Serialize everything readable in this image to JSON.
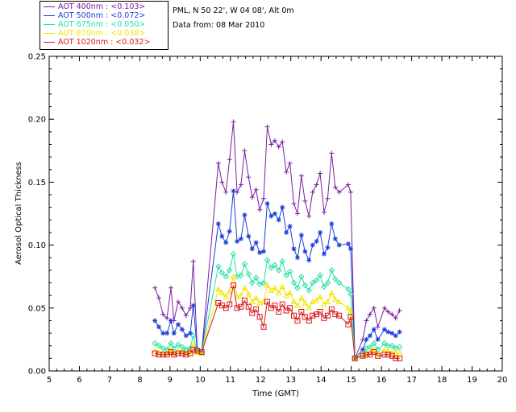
{
  "legend": [
    {
      "label": "AOT  400nm : <0.103>",
      "color": "#7a1ea0"
    },
    {
      "label": "AOT  500nm : <0.072>",
      "color": "#1a3fd8"
    },
    {
      "label": "AOT  675nm : <0.050>",
      "color": "#22e0a8"
    },
    {
      "label": "AOT  870nm : <0.038>",
      "color": "#f2e600"
    },
    {
      "label": "AOT 1020nm : <0.032>",
      "color": "#d81818"
    }
  ],
  "info": {
    "location": "PML, N 50 22', W 04 08', Alt 0m",
    "date": "Data from: 08 Mar 2010"
  },
  "chart_data": {
    "type": "line",
    "xlabel": "Time (GMT)",
    "ylabel": "Aerosol Optical Thickness",
    "xlim": [
      5,
      20
    ],
    "ylim": [
      0,
      0.25
    ],
    "xticks": [
      "5",
      "6",
      "7",
      "8",
      "9",
      "10",
      "11",
      "12",
      "13",
      "14",
      "15",
      "16",
      "17",
      "18",
      "19",
      "20"
    ],
    "yticks": [
      "0.00",
      "0.05",
      "0.10",
      "0.15",
      "0.20",
      "0.25"
    ],
    "grid": false,
    "legend_position": "top-left, outside plot",
    "series": [
      {
        "name": "AOT  400nm",
        "color": "#7a1ea0",
        "marker": "plus",
        "x": [
          8.5,
          8.63,
          8.77,
          8.9,
          9.03,
          9.13,
          9.27,
          9.4,
          9.53,
          9.67,
          9.77,
          9.9,
          10.05,
          10.6,
          10.72,
          10.85,
          10.97,
          11.1,
          11.22,
          11.35,
          11.47,
          11.6,
          11.72,
          11.85,
          11.97,
          12.1,
          12.22,
          12.35,
          12.47,
          12.6,
          12.72,
          12.85,
          12.97,
          13.1,
          13.22,
          13.35,
          13.47,
          13.6,
          13.72,
          13.85,
          13.97,
          14.1,
          14.22,
          14.35,
          14.47,
          14.6,
          14.9,
          14.98,
          15.12,
          15.38,
          15.5,
          15.62,
          15.75,
          15.88,
          16.1,
          16.22,
          16.35,
          16.47,
          16.6
        ],
        "y": [
          0.066,
          0.058,
          0.045,
          0.042,
          0.066,
          0.04,
          0.055,
          0.05,
          0.044,
          0.05,
          0.087,
          0.018,
          0.015,
          0.165,
          0.15,
          0.142,
          0.168,
          0.198,
          0.142,
          0.148,
          0.175,
          0.154,
          0.138,
          0.144,
          0.128,
          0.137,
          0.194,
          0.18,
          0.183,
          0.178,
          0.182,
          0.158,
          0.165,
          0.133,
          0.125,
          0.155,
          0.135,
          0.123,
          0.142,
          0.148,
          0.157,
          0.126,
          0.137,
          0.173,
          0.146,
          0.142,
          0.148,
          0.142,
          0.01,
          0.025,
          0.04,
          0.045,
          0.05,
          0.035,
          0.05,
          0.047,
          0.045,
          0.042,
          0.048
        ]
      },
      {
        "name": "AOT  500nm",
        "color": "#1a3fd8",
        "marker": "asterisk",
        "x": [
          8.5,
          8.63,
          8.77,
          8.9,
          9.03,
          9.13,
          9.27,
          9.4,
          9.53,
          9.67,
          9.77,
          9.9,
          10.05,
          10.6,
          10.72,
          10.85,
          10.97,
          11.1,
          11.22,
          11.35,
          11.47,
          11.6,
          11.72,
          11.85,
          11.97,
          12.1,
          12.22,
          12.35,
          12.47,
          12.6,
          12.72,
          12.85,
          12.97,
          13.1,
          13.22,
          13.35,
          13.47,
          13.6,
          13.72,
          13.85,
          13.97,
          14.1,
          14.22,
          14.35,
          14.47,
          14.6,
          14.9,
          14.98,
          15.12,
          15.38,
          15.5,
          15.62,
          15.75,
          15.88,
          16.1,
          16.22,
          16.35,
          16.47,
          16.6
        ],
        "y": [
          0.04,
          0.035,
          0.03,
          0.03,
          0.04,
          0.03,
          0.037,
          0.033,
          0.028,
          0.03,
          0.052,
          0.017,
          0.015,
          0.117,
          0.107,
          0.102,
          0.111,
          0.143,
          0.103,
          0.105,
          0.124,
          0.107,
          0.097,
          0.102,
          0.094,
          0.095,
          0.133,
          0.123,
          0.125,
          0.12,
          0.13,
          0.11,
          0.115,
          0.097,
          0.09,
          0.108,
          0.095,
          0.088,
          0.1,
          0.103,
          0.11,
          0.093,
          0.098,
          0.117,
          0.105,
          0.1,
          0.101,
          0.097,
          0.01,
          0.017,
          0.025,
          0.028,
          0.033,
          0.025,
          0.033,
          0.031,
          0.03,
          0.028,
          0.031
        ]
      },
      {
        "name": "AOT  675nm",
        "color": "#22e0a8",
        "marker": "diamond",
        "x": [
          8.5,
          8.63,
          8.77,
          8.9,
          9.03,
          9.13,
          9.27,
          9.4,
          9.53,
          9.67,
          9.77,
          9.9,
          10.05,
          10.6,
          10.72,
          10.85,
          10.97,
          11.1,
          11.22,
          11.35,
          11.47,
          11.6,
          11.72,
          11.85,
          11.97,
          12.1,
          12.22,
          12.35,
          12.47,
          12.6,
          12.72,
          12.85,
          12.97,
          13.1,
          13.22,
          13.35,
          13.47,
          13.6,
          13.72,
          13.85,
          13.97,
          14.1,
          14.22,
          14.35,
          14.47,
          14.6,
          14.9,
          14.98,
          15.12,
          15.38,
          15.5,
          15.62,
          15.75,
          15.88,
          16.1,
          16.22,
          16.35,
          16.47,
          16.6
        ],
        "y": [
          0.022,
          0.02,
          0.018,
          0.017,
          0.022,
          0.018,
          0.021,
          0.019,
          0.017,
          0.018,
          0.028,
          0.016,
          0.015,
          0.083,
          0.078,
          0.075,
          0.08,
          0.093,
          0.075,
          0.076,
          0.085,
          0.077,
          0.07,
          0.074,
          0.069,
          0.07,
          0.088,
          0.082,
          0.084,
          0.08,
          0.087,
          0.076,
          0.079,
          0.07,
          0.066,
          0.075,
          0.068,
          0.064,
          0.07,
          0.072,
          0.076,
          0.067,
          0.07,
          0.08,
          0.073,
          0.07,
          0.065,
          0.061,
          0.01,
          0.013,
          0.018,
          0.019,
          0.022,
          0.017,
          0.022,
          0.02,
          0.02,
          0.018,
          0.019
        ]
      },
      {
        "name": "AOT  870nm",
        "color": "#f2e600",
        "marker": "triangle",
        "x": [
          8.5,
          8.63,
          8.77,
          8.9,
          9.03,
          9.13,
          9.27,
          9.4,
          9.53,
          9.67,
          9.77,
          9.9,
          10.05,
          10.6,
          10.72,
          10.85,
          10.97,
          11.1,
          11.22,
          11.35,
          11.47,
          11.6,
          11.72,
          11.85,
          11.97,
          12.1,
          12.22,
          12.35,
          12.47,
          12.6,
          12.72,
          12.85,
          12.97,
          13.1,
          13.22,
          13.35,
          13.47,
          13.6,
          13.72,
          13.85,
          13.97,
          14.1,
          14.22,
          14.35,
          14.47,
          14.6,
          14.9,
          14.98,
          15.12,
          15.38,
          15.5,
          15.62,
          15.75,
          15.88,
          16.1,
          16.22,
          16.35,
          16.47,
          16.6
        ],
        "y": [
          0.016,
          0.015,
          0.014,
          0.014,
          0.017,
          0.014,
          0.016,
          0.015,
          0.014,
          0.015,
          0.02,
          0.015,
          0.014,
          0.065,
          0.062,
          0.059,
          0.063,
          0.075,
          0.059,
          0.06,
          0.066,
          0.061,
          0.055,
          0.058,
          0.054,
          0.055,
          0.068,
          0.064,
          0.066,
          0.062,
          0.067,
          0.06,
          0.062,
          0.055,
          0.052,
          0.058,
          0.054,
          0.05,
          0.055,
          0.056,
          0.059,
          0.053,
          0.055,
          0.062,
          0.057,
          0.055,
          0.05,
          0.047,
          0.01,
          0.012,
          0.014,
          0.015,
          0.017,
          0.013,
          0.017,
          0.016,
          0.015,
          0.014,
          0.015
        ]
      },
      {
        "name": "AOT 1020nm",
        "color": "#d81818",
        "marker": "square",
        "x": [
          8.5,
          8.63,
          8.77,
          8.9,
          9.03,
          9.13,
          9.27,
          9.4,
          9.53,
          9.67,
          9.77,
          9.9,
          10.05,
          10.6,
          10.72,
          10.85,
          10.97,
          11.1,
          11.22,
          11.35,
          11.47,
          11.6,
          11.72,
          11.85,
          11.97,
          12.1,
          12.22,
          12.35,
          12.47,
          12.6,
          12.72,
          12.85,
          12.97,
          13.1,
          13.22,
          13.35,
          13.47,
          13.6,
          13.72,
          13.85,
          13.97,
          14.1,
          14.22,
          14.35,
          14.47,
          14.6,
          14.9,
          14.98,
          15.12,
          15.38,
          15.5,
          15.62,
          15.75,
          15.88,
          16.1,
          16.22,
          16.35,
          16.47,
          16.6
        ],
        "y": [
          0.014,
          0.013,
          0.013,
          0.013,
          0.015,
          0.013,
          0.014,
          0.014,
          0.013,
          0.014,
          0.017,
          0.016,
          0.015,
          0.054,
          0.052,
          0.05,
          0.053,
          0.068,
          0.05,
          0.051,
          0.056,
          0.051,
          0.046,
          0.049,
          0.043,
          0.035,
          0.055,
          0.05,
          0.052,
          0.047,
          0.053,
          0.048,
          0.05,
          0.044,
          0.04,
          0.047,
          0.043,
          0.04,
          0.044,
          0.045,
          0.047,
          0.042,
          0.044,
          0.049,
          0.045,
          0.044,
          0.037,
          0.043,
          0.01,
          0.012,
          0.013,
          0.013,
          0.015,
          0.012,
          0.013,
          0.013,
          0.012,
          0.01,
          0.01
        ]
      }
    ]
  }
}
